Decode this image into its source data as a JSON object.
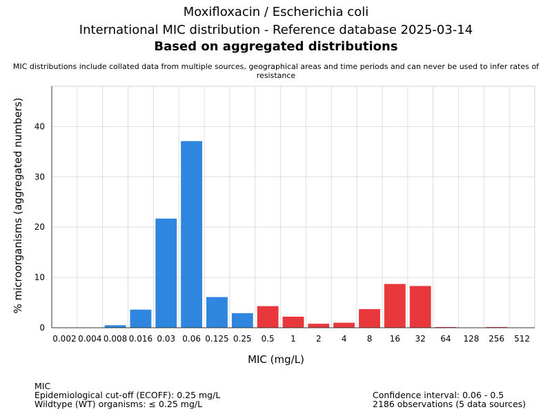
{
  "title": {
    "line1": "Moxifloxacin / Escherichia coli",
    "line2": "International MIC distribution - Reference database 2025-03-14",
    "line3": "Based on aggregated distributions"
  },
  "subtitle": "MIC distributions include collated data from multiple sources, geographical areas and time periods and can never be used to infer rates of resistance",
  "footer": {
    "left": [
      "MIC",
      "Epidemiological cut-off (ECOFF): 0.25 mg/L",
      "Wildtype (WT) organisms: ≤ 0.25 mg/L"
    ],
    "right": [
      "Confidence interval: 0.06 - 0.5",
      "2186 observations (5 data sources)"
    ]
  },
  "colors": {
    "wildtype": "#2e86de",
    "non_wildtype": "#e8383b"
  },
  "chart_data": {
    "type": "bar",
    "xlabel": "MIC (mg/L)",
    "ylabel": "% microorganisms (aggregated numbers)",
    "ylim": [
      0,
      48
    ],
    "yticks": [
      0,
      10,
      20,
      30,
      40
    ],
    "grid": true,
    "categories": [
      "0.002",
      "0.004",
      "0.008",
      "0.016",
      "0.03",
      "0.06",
      "0.125",
      "0.25",
      "0.5",
      "1",
      "2",
      "4",
      "8",
      "16",
      "32",
      "64",
      "128",
      "256",
      "512"
    ],
    "values": [
      0,
      0,
      0.5,
      3.6,
      21.7,
      37.1,
      6.1,
      2.9,
      4.3,
      2.2,
      0.8,
      1.0,
      3.7,
      8.7,
      8.3,
      0.15,
      0,
      0.15,
      0
    ],
    "wildtype": [
      true,
      true,
      true,
      true,
      true,
      true,
      true,
      true,
      false,
      false,
      false,
      false,
      false,
      false,
      false,
      false,
      false,
      false,
      false
    ]
  }
}
